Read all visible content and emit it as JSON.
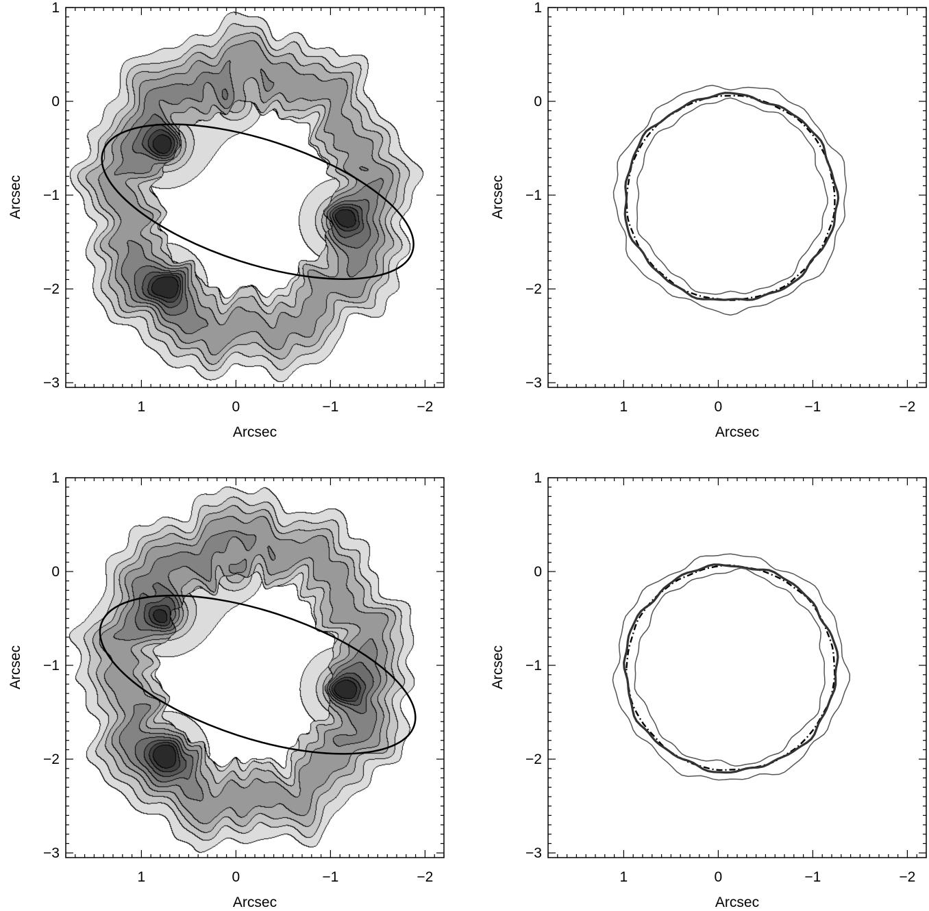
{
  "figure": {
    "panels": [
      {
        "id": "top-left",
        "kind": "contour-map",
        "xlabel": "Arcsec",
        "ylabel": "Arcsec"
      },
      {
        "id": "top-right",
        "kind": "ring-outline",
        "xlabel": "Arcsec",
        "ylabel": "Arcsec"
      },
      {
        "id": "bottom-left",
        "kind": "contour-map",
        "xlabel": "Arcsec",
        "ylabel": "Arcsec"
      },
      {
        "id": "bottom-right",
        "kind": "ring-outline",
        "xlabel": "Arcsec",
        "ylabel": "Arcsec"
      }
    ]
  },
  "chart_data": [
    {
      "type": "heatmap",
      "panel": "top-left",
      "xlabel": "Arcsec",
      "ylabel": "Arcsec",
      "xlim": [
        1.8,
        -2.2
      ],
      "ylim": [
        -3.05,
        1.0
      ],
      "x_ticks": [
        1,
        0,
        -1,
        -2
      ],
      "x_tick_labels": [
        "1",
        "0",
        "−1",
        "−2"
      ],
      "y_ticks": [
        1,
        0,
        -1,
        -2,
        -3
      ],
      "y_tick_labels": [
        "1",
        "0",
        "−1",
        "−2",
        "−3"
      ],
      "grid": false,
      "colormap": "grayscale",
      "contour_levels": 9,
      "ring": {
        "center": [
          -0.1,
          -1.05
        ],
        "radius_x": 1.0,
        "radius_y": 1.08,
        "width": 0.55
      },
      "emission_peaks": [
        {
          "x": 0.0,
          "y": -0.02,
          "strength": 0.5
        },
        {
          "x": 0.75,
          "y": -0.47,
          "strength": 1.0
        },
        {
          "x": -1.12,
          "y": -1.27,
          "strength": 1.0
        },
        {
          "x": 0.75,
          "y": -1.97,
          "strength": 1.0
        }
      ],
      "ellipse": {
        "center": [
          -0.23,
          -1.07
        ],
        "semi_major": 1.72,
        "semi_minor": 0.66,
        "angle_deg": -18
      }
    },
    {
      "type": "line",
      "panel": "top-right",
      "xlabel": "Arcsec",
      "ylabel": "Arcsec",
      "xlim": [
        1.8,
        -2.2
      ],
      "ylim": [
        -3.05,
        1.0
      ],
      "x_ticks": [
        1,
        0,
        -1,
        -2
      ],
      "x_tick_labels": [
        "1",
        "0",
        "−1",
        "−2"
      ],
      "y_ticks": [
        1,
        0,
        -1,
        -2,
        -3
      ],
      "y_tick_labels": [
        "1",
        "0",
        "−1",
        "−2",
        "−3"
      ],
      "grid": false,
      "ring_center": [
        -0.13,
        -1.03
      ],
      "series": [
        {
          "style": "dash-dot",
          "radius_x": 1.1,
          "radius_y": 1.09
        },
        {
          "style": "thick",
          "radius_x": 1.12,
          "radius_y": 1.1
        },
        {
          "style": "thin",
          "radius_x": 1.0,
          "radius_y": 1.03
        },
        {
          "style": "thin",
          "radius_x": 1.22,
          "radius_y": 1.2
        }
      ]
    },
    {
      "type": "heatmap",
      "panel": "bottom-left",
      "xlabel": "Arcsec",
      "ylabel": "Arcsec",
      "xlim": [
        1.8,
        -2.2
      ],
      "ylim": [
        -3.05,
        1.0
      ],
      "x_ticks": [
        1,
        0,
        -1,
        -2
      ],
      "x_tick_labels": [
        "1",
        "0",
        "−1",
        "−2"
      ],
      "y_ticks": [
        1,
        0,
        -1,
        -2,
        -3
      ],
      "y_tick_labels": [
        "1",
        "0",
        "−1",
        "−2",
        "−3"
      ],
      "grid": false,
      "colormap": "grayscale",
      "contour_levels": 9,
      "ring": {
        "center": [
          -0.1,
          -1.05
        ],
        "radius_x": 1.0,
        "radius_y": 1.08,
        "width": 0.55
      },
      "emission_peaks": [
        {
          "x": 0.0,
          "y": -0.02,
          "strength": 0.5
        },
        {
          "x": 0.73,
          "y": -0.45,
          "strength": 1.0
        },
        {
          "x": -1.13,
          "y": -1.25,
          "strength": 1.0
        },
        {
          "x": 0.73,
          "y": -1.95,
          "strength": 1.0
        }
      ],
      "ellipse": {
        "center": [
          -0.23,
          -1.1
        ],
        "semi_major": 1.74,
        "semi_minor": 0.68,
        "angle_deg": -18
      }
    },
    {
      "type": "line",
      "panel": "bottom-right",
      "xlabel": "Arcsec",
      "ylabel": "Arcsec",
      "xlim": [
        1.8,
        -2.2
      ],
      "ylim": [
        -3.05,
        1.0
      ],
      "x_ticks": [
        1,
        0,
        -1,
        -2
      ],
      "x_tick_labels": [
        "1",
        "0",
        "−1",
        "−2"
      ],
      "y_ticks": [
        1,
        0,
        -1,
        -2,
        -3
      ],
      "y_tick_labels": [
        "1",
        "0",
        "−1",
        "−2",
        "−3"
      ],
      "grid": false,
      "ring_center": [
        -0.13,
        -1.03
      ],
      "series": [
        {
          "style": "dash-dot",
          "radius_x": 1.1,
          "radius_y": 1.09
        },
        {
          "style": "thick",
          "radius_x": 1.12,
          "radius_y": 1.1
        },
        {
          "style": "thin",
          "radius_x": 1.0,
          "radius_y": 1.03
        },
        {
          "style": "thin",
          "radius_x": 1.22,
          "radius_y": 1.2
        }
      ]
    }
  ]
}
